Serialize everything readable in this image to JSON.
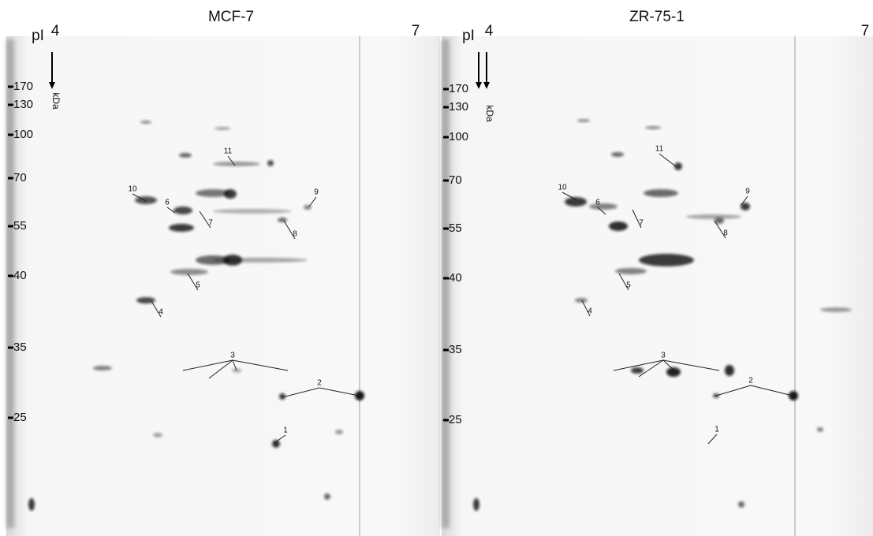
{
  "panels": [
    {
      "title": "MCF-7",
      "pi_label": "pI",
      "pi_start": "4",
      "pi_end": "7",
      "unit": "kDa",
      "markers": [
        "170",
        "130",
        "100",
        "70",
        "55",
        "40",
        "35",
        "25"
      ],
      "spots": [
        "11",
        "10",
        "9",
        "6",
        "7",
        "8",
        "5",
        "4",
        "3",
        "2",
        "1"
      ]
    },
    {
      "title": "ZR-75-1",
      "pi_label": "pI",
      "pi_start": "4",
      "pi_end": "7",
      "unit": "kDa",
      "markers": [
        "170",
        "130",
        "100",
        "70",
        "55",
        "40",
        "35",
        "25"
      ],
      "spots": [
        "11",
        "10",
        "9",
        "6",
        "7",
        "8",
        "5",
        "4",
        "3",
        "2",
        "1"
      ]
    }
  ]
}
